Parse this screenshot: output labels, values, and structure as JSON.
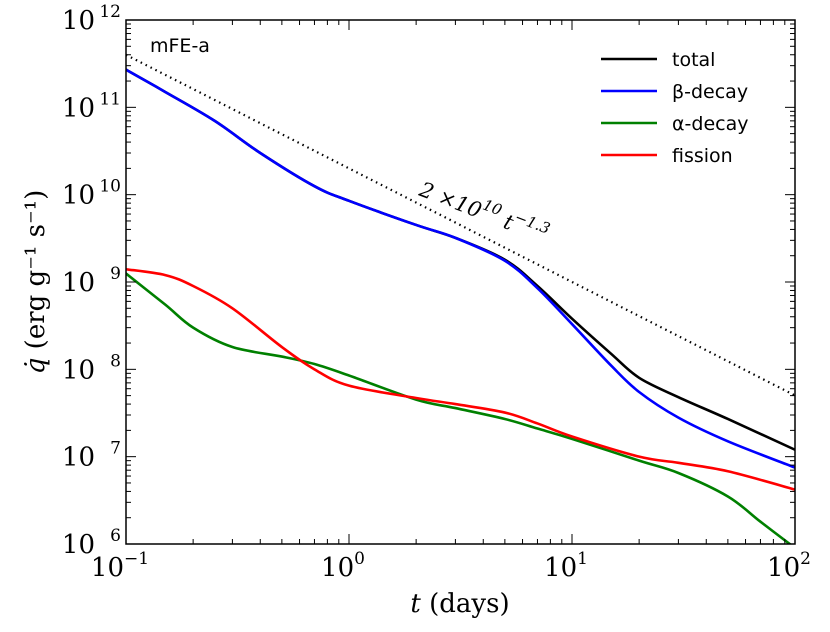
{
  "chart_data": {
    "type": "line",
    "scale": {
      "x": "log",
      "y": "log"
    },
    "xlim": [
      0.1,
      100
    ],
    "ylim": [
      1000000.0,
      1000000000000.0
    ],
    "xlabel": {
      "var": "t",
      "unit": "(days)"
    },
    "ylabel": {
      "var": "q̇",
      "unit": "(erg g⁻¹ s⁻¹)"
    },
    "x_ticks": [
      {
        "value": 0.1,
        "base": "10",
        "exp": "−1"
      },
      {
        "value": 1,
        "base": "10",
        "exp": "0"
      },
      {
        "value": 10,
        "base": "10",
        "exp": "1"
      },
      {
        "value": 100,
        "base": "10",
        "exp": "2"
      }
    ],
    "y_ticks": [
      {
        "value": 1000000.0,
        "base": "10",
        "exp": "6"
      },
      {
        "value": 10000000.0,
        "base": "10",
        "exp": "7"
      },
      {
        "value": 100000000.0,
        "base": "10",
        "exp": "8"
      },
      {
        "value": 1000000000.0,
        "base": "10",
        "exp": "9"
      },
      {
        "value": 10000000000.0,
        "base": "10",
        "exp": "10"
      },
      {
        "value": 100000000000.0,
        "base": "10",
        "exp": "11"
      },
      {
        "value": 1000000000000.0,
        "base": "10",
        "exp": "12"
      }
    ],
    "panel_label": "mFE-a",
    "legend_position": "top-right",
    "grid": false,
    "series": [
      {
        "name": "total",
        "color": "#000000",
        "x": [
          0.1,
          0.15,
          0.25,
          0.4,
          0.7,
          1.0,
          2.0,
          3.0,
          5.0,
          7.0,
          10,
          15,
          20,
          30,
          50,
          100
        ],
        "y": [
          270000000000.0,
          150000000000.0,
          70000000000.0,
          30000000000.0,
          12500000000.0,
          8500000000.0,
          4500000000.0,
          3200000000.0,
          1800000000.0,
          900000000.0,
          380000000.0,
          150000000.0,
          80000000.0,
          48000000.0,
          27000000.0,
          12000000.0
        ]
      },
      {
        "name": "β-decay",
        "color": "#0000ff",
        "x": [
          0.1,
          0.15,
          0.25,
          0.4,
          0.7,
          1.0,
          2.0,
          3.0,
          5.0,
          7.0,
          10,
          15,
          20,
          30,
          50,
          100
        ],
        "y": [
          270000000000.0,
          150000000000.0,
          70000000000.0,
          30000000000.0,
          12500000000.0,
          8500000000.0,
          4500000000.0,
          3200000000.0,
          1750000000.0,
          850000000.0,
          330000000.0,
          110000000.0,
          55000000.0,
          28000000.0,
          15000000.0,
          7500000.0
        ]
      },
      {
        "name": "α-decay",
        "color": "#008000",
        "x": [
          0.1,
          0.15,
          0.2,
          0.3,
          0.5,
          0.7,
          1.0,
          2.0,
          3.0,
          5.0,
          7.0,
          10,
          20,
          30,
          50,
          70,
          100
        ],
        "y": [
          1250000000.0,
          550000000.0,
          300000000.0,
          180000000.0,
          140000000.0,
          115000000.0,
          85000000.0,
          45000000.0,
          36000000.0,
          27000000.0,
          21000000.0,
          16000000.0,
          9000000.0,
          6500000.0,
          3500000.0,
          1800000.0,
          900000.0
        ]
      },
      {
        "name": "fission",
        "color": "#ff0000",
        "x": [
          0.1,
          0.15,
          0.2,
          0.3,
          0.5,
          0.7,
          1.0,
          2.0,
          3.0,
          5.0,
          7.0,
          10,
          20,
          30,
          50,
          100
        ],
        "y": [
          1400000000.0,
          1200000000.0,
          900000000.0,
          500000000.0,
          180000000.0,
          100000000.0,
          65000000.0,
          47000000.0,
          40000000.0,
          32000000.0,
          24000000.0,
          17000000.0,
          10000000.0,
          8500000.0,
          6800000.0,
          4200000.0
        ]
      },
      {
        "name": "2×10¹⁰ t⁻¹·³",
        "color": "#000000",
        "style": "dotted",
        "x": [
          0.1,
          100
        ],
        "y": [
          399000000000.0,
          50200000.0
        ]
      }
    ],
    "annotations": [
      {
        "text": "2 ×10",
        "sup1": "10",
        "mid": " t",
        "sup2": "−1.3"
      }
    ]
  }
}
